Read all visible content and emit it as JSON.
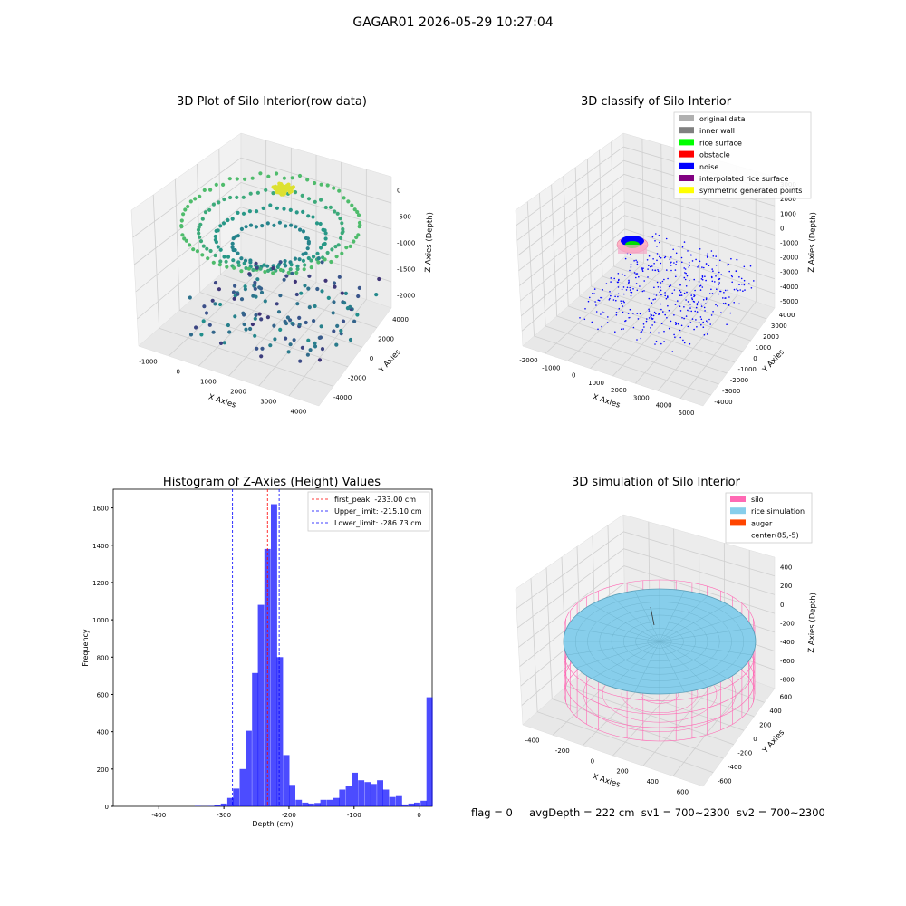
{
  "suptitle": "GAGAR01 2026-05-29 10:27:04",
  "footer": {
    "flag": "flag = 0",
    "avg_depth": "avgDepth = 222 cm",
    "sv1": "sv1 = 700~2300",
    "sv2": "sv2 = 700~2300"
  },
  "chart_data": [
    {
      "type": "scatter",
      "title": "3D Plot of Silo Interior(row data)",
      "xlabel": "X Axies",
      "ylabel": "Y Axies",
      "zlabel": "Z Axies (Depth)",
      "x_ticks": [
        "-1000",
        "0",
        "1000",
        "2000",
        "3000",
        "4000"
      ],
      "y_ticks": [
        "-4000",
        "-2000",
        "0",
        "2000",
        "4000"
      ],
      "z_ticks": [
        "-2000",
        "-1500",
        "-1000",
        "-500",
        "0"
      ],
      "xlim": [
        -1500,
        4500
      ],
      "ylim": [
        -4500,
        4500
      ],
      "zlim": [
        -2300,
        100
      ],
      "colormap": "viridis",
      "point_count_note": "approx"
    },
    {
      "type": "scatter",
      "title": "3D classify of Silo Interior",
      "xlabel": "X Axies",
      "ylabel": "Y Axies",
      "zlabel": "Z Axies (Depth)",
      "x_ticks": [
        "-2000",
        "-1000",
        "0",
        "1000",
        "2000",
        "3000",
        "4000",
        "5000"
      ],
      "y_ticks": [
        "-4000",
        "-3000",
        "-2000",
        "-1000",
        "0",
        "1000",
        "2000",
        "3000",
        "4000"
      ],
      "z_ticks": [
        "-5000",
        "-4000",
        "-3000",
        "-2000",
        "-1000",
        "0",
        "1000",
        "2000",
        "3000"
      ],
      "legend_position": "top-right",
      "legend": [
        {
          "label": "original data",
          "color": "#b0b0b0"
        },
        {
          "label": "inner wall",
          "color": "#808080"
        },
        {
          "label": "rice surface",
          "color": "#00ff00"
        },
        {
          "label": "obstacle",
          "color": "#ff0000"
        },
        {
          "label": "noise",
          "color": "#0000ff"
        },
        {
          "label": "interpolated rice surface",
          "color": "#800080"
        },
        {
          "label": "symmetric generated points",
          "color": "#ffff00"
        }
      ]
    },
    {
      "type": "bar",
      "title": "Histogram of Z-Axies (Height) Values",
      "xlabel": "Depth (cm)",
      "ylabel": "Frequency",
      "xlim": [
        -470,
        20
      ],
      "ylim": [
        0,
        1700
      ],
      "x_ticks": [
        -400,
        -300,
        -200,
        -100,
        0
      ],
      "y_ticks": [
        0,
        200,
        400,
        600,
        800,
        1000,
        1200,
        1400,
        1600
      ],
      "bar_color": "#0000ff",
      "bar_alpha": 0.7,
      "bin_width": 9.6,
      "bins": [
        {
          "x": -340,
          "value": 2
        },
        {
          "x": -330,
          "value": 1
        },
        {
          "x": -320,
          "value": 2
        },
        {
          "x": -310,
          "value": 5
        },
        {
          "x": -300,
          "value": 15
        },
        {
          "x": -290,
          "value": 45
        },
        {
          "x": -281,
          "value": 95
        },
        {
          "x": -271,
          "value": 200
        },
        {
          "x": -262,
          "value": 405
        },
        {
          "x": -252,
          "value": 715
        },
        {
          "x": -243,
          "value": 1080
        },
        {
          "x": -233,
          "value": 1380
        },
        {
          "x": -223,
          "value": 1620
        },
        {
          "x": -214,
          "value": 800
        },
        {
          "x": -204,
          "value": 275
        },
        {
          "x": -195,
          "value": 115
        },
        {
          "x": -185,
          "value": 35
        },
        {
          "x": -175,
          "value": 20
        },
        {
          "x": -166,
          "value": 15
        },
        {
          "x": -156,
          "value": 18
        },
        {
          "x": -147,
          "value": 35
        },
        {
          "x": -137,
          "value": 35
        },
        {
          "x": -127,
          "value": 45
        },
        {
          "x": -118,
          "value": 90
        },
        {
          "x": -108,
          "value": 110
        },
        {
          "x": -99,
          "value": 180
        },
        {
          "x": -89,
          "value": 140
        },
        {
          "x": -79,
          "value": 130
        },
        {
          "x": -70,
          "value": 120
        },
        {
          "x": -60,
          "value": 140
        },
        {
          "x": -51,
          "value": 90
        },
        {
          "x": -41,
          "value": 50
        },
        {
          "x": -31,
          "value": 55
        },
        {
          "x": -22,
          "value": 10
        },
        {
          "x": -12,
          "value": 15
        },
        {
          "x": -3,
          "value": 20
        },
        {
          "x": 7,
          "value": 30
        },
        {
          "x": 16,
          "value": 585
        }
      ],
      "vlines": [
        {
          "label": "first_peak: -233.00 cm",
          "x": -233.0,
          "color": "#ff0000"
        },
        {
          "label": "Upper_limit: -215.10 cm",
          "x": -215.1,
          "color": "#0000ff"
        },
        {
          "label": "Lower_limit: -286.73 cm",
          "x": -286.73,
          "color": "#0000ff"
        }
      ],
      "legend_position": "top-right"
    },
    {
      "type": "surface",
      "title": "3D simulation of Silo Interior",
      "xlabel": "X Axies",
      "ylabel": "Y Axies",
      "zlabel": "Z Axies (Depth)",
      "x_ticks": [
        "-400",
        "-200",
        "0",
        "200",
        "400",
        "600"
      ],
      "y_ticks": [
        "-600",
        "-400",
        "-200",
        "0",
        "200",
        "400",
        "600"
      ],
      "z_ticks": [
        "-800",
        "-600",
        "-400",
        "-200",
        "0",
        "200",
        "400"
      ],
      "legend_position": "top-right",
      "legend": [
        {
          "label": "silo",
          "color": "#ff69b4"
        },
        {
          "label": "rice simulation",
          "color": "#87ceeb"
        },
        {
          "label": "auger",
          "color": "#ff4500"
        },
        {
          "label": "center(85,-5)",
          "color": "#ffffff"
        }
      ]
    }
  ]
}
